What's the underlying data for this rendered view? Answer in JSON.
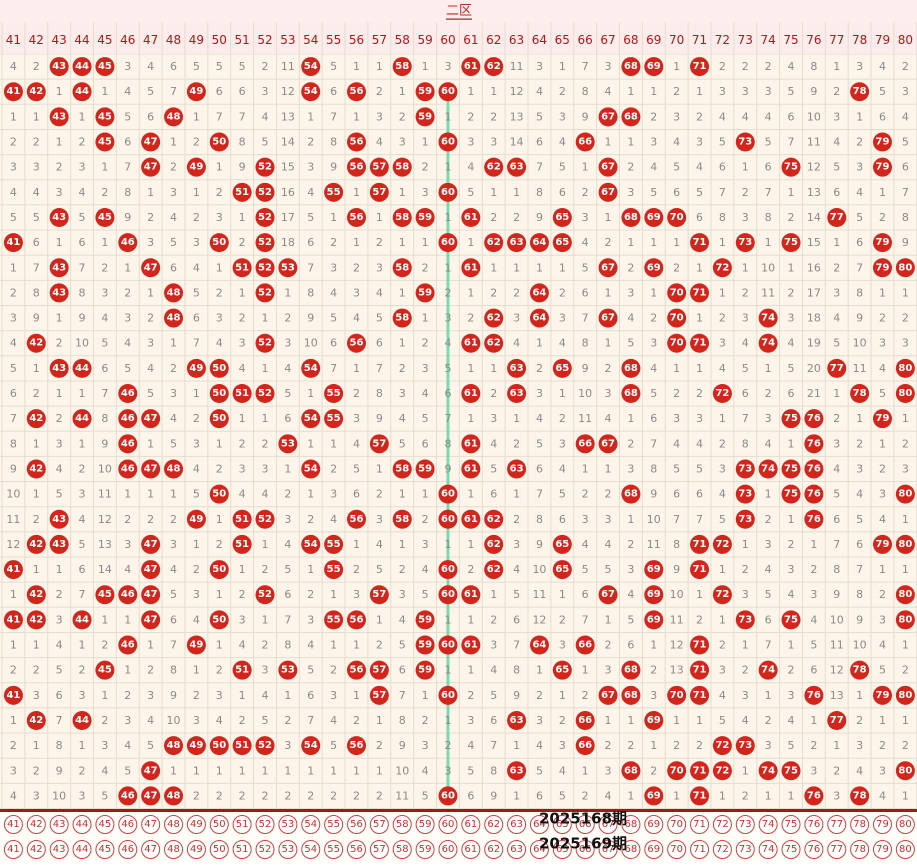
{
  "header": {
    "title": "二区"
  },
  "columns": [
    41,
    42,
    43,
    44,
    45,
    46,
    47,
    48,
    49,
    50,
    51,
    52,
    53,
    54,
    55,
    56,
    57,
    58,
    59,
    60,
    61,
    62,
    63,
    64,
    65,
    66,
    67,
    68,
    69,
    70,
    71,
    72,
    73,
    74,
    75,
    76,
    77,
    78,
    79,
    80
  ],
  "rows": [
    [
      4,
      2,
      43,
      44,
      45,
      3,
      4,
      6,
      5,
      5,
      5,
      2,
      11,
      54,
      5,
      1,
      1,
      58,
      1,
      3,
      61,
      62,
      11,
      3,
      1,
      7,
      3,
      68,
      69,
      1,
      71,
      2,
      2,
      2,
      4,
      8,
      1,
      3,
      4,
      2
    ],
    [
      41,
      42,
      1,
      44,
      1,
      4,
      5,
      7,
      49,
      6,
      6,
      3,
      12,
      54,
      6,
      56,
      2,
      1,
      59,
      60,
      1,
      1,
      12,
      4,
      2,
      8,
      4,
      1,
      1,
      2,
      1,
      3,
      3,
      3,
      5,
      9,
      2,
      78,
      5,
      3
    ],
    [
      1,
      1,
      43,
      1,
      45,
      5,
      6,
      48,
      1,
      7,
      7,
      4,
      13,
      1,
      7,
      1,
      3,
      2,
      59,
      1,
      2,
      2,
      13,
      5,
      3,
      9,
      67,
      68,
      2,
      3,
      2,
      4,
      4,
      4,
      6,
      10,
      3,
      1,
      6,
      4
    ],
    [
      2,
      2,
      1,
      2,
      45,
      6,
      47,
      1,
      2,
      50,
      8,
      5,
      14,
      2,
      8,
      56,
      4,
      3,
      1,
      60,
      3,
      3,
      14,
      6,
      4,
      66,
      1,
      1,
      3,
      4,
      3,
      5,
      73,
      5,
      7,
      11,
      4,
      2,
      79,
      5
    ],
    [
      3,
      3,
      2,
      3,
      1,
      7,
      47,
      2,
      49,
      1,
      9,
      52,
      15,
      3,
      9,
      56,
      57,
      58,
      2,
      1,
      4,
      62,
      63,
      7,
      5,
      1,
      67,
      2,
      4,
      5,
      4,
      6,
      1,
      6,
      75,
      12,
      5,
      3,
      79,
      6
    ],
    [
      4,
      4,
      3,
      4,
      2,
      8,
      1,
      3,
      1,
      2,
      51,
      52,
      16,
      4,
      55,
      1,
      57,
      1,
      3,
      60,
      5,
      1,
      1,
      8,
      6,
      2,
      67,
      3,
      5,
      6,
      5,
      7,
      2,
      7,
      1,
      13,
      6,
      4,
      1,
      7
    ],
    [
      5,
      5,
      43,
      5,
      45,
      9,
      2,
      4,
      2,
      3,
      1,
      52,
      17,
      5,
      1,
      56,
      1,
      58,
      59,
      1,
      61,
      2,
      2,
      9,
      65,
      3,
      1,
      68,
      69,
      70,
      6,
      8,
      3,
      8,
      2,
      14,
      77,
      5,
      2,
      8
    ],
    [
      41,
      6,
      1,
      6,
      1,
      46,
      3,
      5,
      3,
      50,
      2,
      52,
      18,
      6,
      2,
      1,
      2,
      1,
      1,
      60,
      1,
      62,
      63,
      64,
      65,
      4,
      2,
      1,
      1,
      1,
      71,
      1,
      73,
      1,
      75,
      15,
      1,
      6,
      79,
      9
    ],
    [
      1,
      7,
      43,
      7,
      2,
      1,
      47,
      6,
      4,
      1,
      51,
      52,
      53,
      7,
      3,
      2,
      3,
      58,
      2,
      1,
      61,
      1,
      1,
      1,
      1,
      5,
      67,
      2,
      69,
      2,
      1,
      72,
      1,
      10,
      1,
      16,
      2,
      7,
      79,
      80
    ],
    [
      2,
      8,
      43,
      8,
      3,
      2,
      1,
      48,
      5,
      2,
      1,
      52,
      1,
      8,
      4,
      3,
      4,
      1,
      59,
      2,
      1,
      2,
      2,
      64,
      2,
      6,
      1,
      3,
      1,
      70,
      71,
      1,
      2,
      11,
      2,
      17,
      3,
      8,
      1,
      1
    ],
    [
      3,
      9,
      1,
      9,
      4,
      3,
      2,
      48,
      6,
      3,
      2,
      1,
      2,
      9,
      5,
      4,
      5,
      58,
      1,
      3,
      2,
      62,
      3,
      64,
      3,
      7,
      67,
      4,
      2,
      70,
      1,
      2,
      3,
      74,
      3,
      18,
      4,
      9,
      2,
      2
    ],
    [
      4,
      42,
      2,
      10,
      5,
      4,
      3,
      1,
      7,
      4,
      3,
      52,
      3,
      10,
      6,
      56,
      6,
      1,
      2,
      4,
      61,
      62,
      4,
      1,
      4,
      8,
      1,
      5,
      3,
      70,
      71,
      3,
      4,
      74,
      4,
      19,
      5,
      10,
      3,
      3
    ],
    [
      5,
      1,
      43,
      44,
      6,
      5,
      4,
      2,
      49,
      50,
      4,
      1,
      4,
      54,
      7,
      1,
      7,
      2,
      3,
      5,
      1,
      1,
      63,
      2,
      65,
      9,
      2,
      68,
      4,
      1,
      1,
      4,
      5,
      1,
      5,
      20,
      77,
      11,
      4,
      80
    ],
    [
      6,
      2,
      1,
      1,
      7,
      46,
      5,
      3,
      1,
      50,
      51,
      52,
      5,
      1,
      55,
      2,
      8,
      3,
      4,
      6,
      61,
      2,
      63,
      3,
      1,
      10,
      3,
      68,
      5,
      2,
      2,
      72,
      6,
      2,
      6,
      21,
      1,
      78,
      5,
      80
    ],
    [
      7,
      42,
      2,
      44,
      8,
      46,
      47,
      4,
      2,
      50,
      1,
      1,
      6,
      54,
      55,
      3,
      9,
      4,
      5,
      7,
      1,
      3,
      1,
      4,
      2,
      11,
      4,
      1,
      6,
      3,
      3,
      1,
      7,
      3,
      75,
      76,
      2,
      1,
      79,
      1
    ],
    [
      8,
      1,
      3,
      1,
      9,
      46,
      1,
      5,
      3,
      1,
      2,
      2,
      53,
      1,
      1,
      4,
      57,
      5,
      6,
      8,
      61,
      4,
      2,
      5,
      3,
      66,
      67,
      2,
      7,
      4,
      4,
      2,
      8,
      4,
      1,
      76,
      3,
      2,
      1,
      2
    ],
    [
      9,
      42,
      4,
      2,
      10,
      46,
      47,
      48,
      4,
      2,
      3,
      3,
      1,
      54,
      2,
      5,
      1,
      58,
      59,
      9,
      61,
      5,
      63,
      6,
      4,
      1,
      1,
      3,
      8,
      5,
      5,
      3,
      73,
      74,
      75,
      76,
      4,
      3,
      2,
      3
    ],
    [
      10,
      1,
      5,
      3,
      11,
      1,
      1,
      1,
      5,
      50,
      4,
      4,
      2,
      1,
      3,
      6,
      2,
      1,
      1,
      60,
      1,
      6,
      1,
      7,
      5,
      2,
      2,
      68,
      9,
      6,
      6,
      4,
      73,
      1,
      75,
      76,
      5,
      4,
      3,
      80
    ],
    [
      11,
      2,
      43,
      4,
      12,
      2,
      2,
      2,
      49,
      1,
      51,
      52,
      3,
      2,
      4,
      56,
      3,
      58,
      2,
      60,
      61,
      62,
      2,
      8,
      6,
      3,
      3,
      1,
      10,
      7,
      7,
      5,
      73,
      2,
      1,
      76,
      6,
      5,
      4,
      1
    ],
    [
      12,
      42,
      43,
      5,
      13,
      3,
      47,
      3,
      1,
      2,
      51,
      1,
      4,
      54,
      55,
      1,
      4,
      1,
      3,
      1,
      1,
      62,
      3,
      9,
      65,
      4,
      4,
      2,
      11,
      8,
      71,
      72,
      1,
      3,
      2,
      1,
      7,
      6,
      79,
      80
    ],
    [
      41,
      1,
      1,
      6,
      14,
      4,
      47,
      4,
      2,
      50,
      1,
      2,
      5,
      1,
      55,
      2,
      5,
      2,
      4,
      60,
      2,
      62,
      4,
      10,
      65,
      5,
      5,
      3,
      69,
      9,
      71,
      1,
      2,
      4,
      3,
      2,
      8,
      7,
      1,
      1
    ],
    [
      1,
      42,
      2,
      7,
      45,
      46,
      47,
      5,
      3,
      1,
      2,
      52,
      6,
      2,
      1,
      3,
      57,
      3,
      5,
      60,
      61,
      1,
      5,
      11,
      1,
      6,
      67,
      4,
      69,
      10,
      1,
      72,
      3,
      5,
      4,
      3,
      9,
      8,
      2,
      80
    ],
    [
      41,
      42,
      3,
      44,
      1,
      1,
      47,
      6,
      4,
      50,
      3,
      1,
      7,
      3,
      55,
      56,
      1,
      4,
      59,
      1,
      1,
      2,
      6,
      12,
      2,
      7,
      1,
      5,
      69,
      11,
      2,
      1,
      73,
      6,
      75,
      4,
      10,
      9,
      3,
      80
    ],
    [
      1,
      1,
      4,
      1,
      2,
      46,
      1,
      7,
      49,
      1,
      4,
      2,
      8,
      4,
      1,
      1,
      2,
      5,
      59,
      60,
      61,
      3,
      7,
      64,
      3,
      66,
      2,
      6,
      1,
      12,
      71,
      2,
      1,
      7,
      1,
      5,
      11,
      10,
      4,
      1
    ],
    [
      2,
      2,
      5,
      2,
      45,
      1,
      2,
      8,
      1,
      2,
      51,
      3,
      53,
      5,
      2,
      56,
      57,
      6,
      59,
      1,
      1,
      4,
      8,
      1,
      65,
      1,
      3,
      68,
      2,
      13,
      71,
      3,
      2,
      74,
      2,
      6,
      12,
      78,
      5,
      2
    ],
    [
      41,
      3,
      6,
      3,
      1,
      2,
      3,
      9,
      2,
      3,
      1,
      4,
      1,
      6,
      3,
      1,
      57,
      7,
      1,
      60,
      2,
      5,
      9,
      2,
      1,
      2,
      67,
      68,
      3,
      70,
      71,
      4,
      3,
      1,
      3,
      76,
      13,
      1,
      79,
      80
    ],
    [
      1,
      42,
      7,
      44,
      2,
      3,
      4,
      10,
      3,
      4,
      2,
      5,
      2,
      7,
      4,
      2,
      1,
      8,
      2,
      1,
      3,
      6,
      63,
      3,
      2,
      66,
      1,
      1,
      69,
      1,
      1,
      5,
      4,
      2,
      4,
      1,
      77,
      2,
      1,
      1
    ],
    [
      2,
      1,
      8,
      1,
      3,
      4,
      5,
      48,
      49,
      50,
      51,
      52,
      3,
      54,
      5,
      56,
      2,
      9,
      3,
      2,
      4,
      7,
      1,
      4,
      3,
      66,
      2,
      2,
      1,
      2,
      2,
      72,
      73,
      3,
      5,
      2,
      1,
      3,
      2,
      2
    ],
    [
      3,
      2,
      9,
      2,
      4,
      5,
      47,
      1,
      1,
      1,
      1,
      1,
      1,
      1,
      1,
      1,
      1,
      10,
      4,
      3,
      5,
      8,
      63,
      5,
      4,
      1,
      3,
      68,
      2,
      70,
      71,
      72,
      1,
      74,
      75,
      3,
      2,
      4,
      3,
      80
    ],
    [
      4,
      3,
      10,
      3,
      5,
      46,
      47,
      48,
      2,
      2,
      2,
      2,
      2,
      2,
      2,
      2,
      2,
      11,
      5,
      60,
      6,
      9,
      1,
      6,
      5,
      2,
      4,
      1,
      69,
      1,
      71,
      1,
      2,
      1,
      1,
      76,
      3,
      78,
      4,
      1
    ]
  ],
  "periods": [
    "2025168期",
    "2025169期"
  ]
}
